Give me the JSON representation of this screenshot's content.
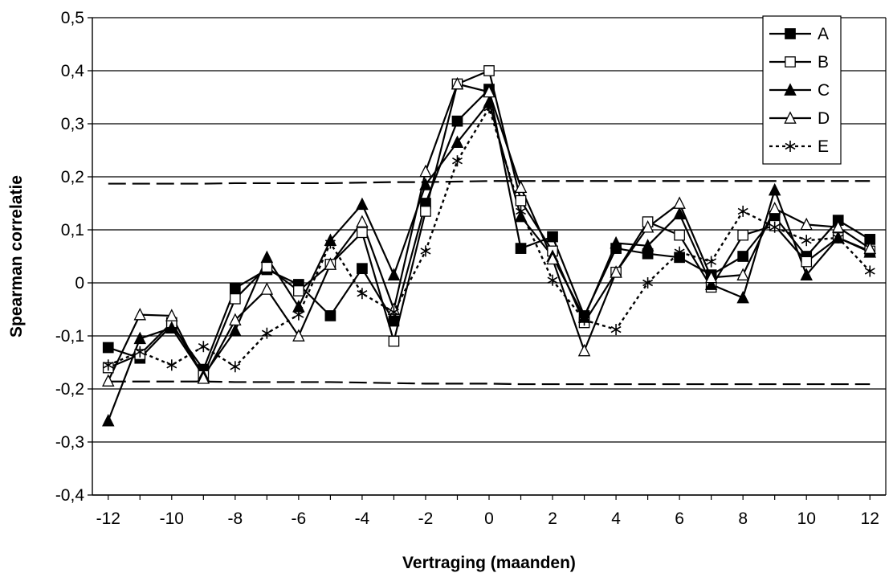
{
  "chart_data": {
    "type": "line",
    "title": "",
    "xlabel": "Vertraging (maanden)",
    "ylabel": "Spearman correlatie",
    "xlim": [
      -12.5,
      12.5
    ],
    "ylim": [
      -0.4,
      0.5
    ],
    "x_ticks": [
      -12,
      -10,
      -8,
      -6,
      -4,
      -2,
      0,
      2,
      4,
      6,
      8,
      10,
      12
    ],
    "x_tick_labels": [
      "-12",
      "-10",
      "-8",
      "-6",
      "-4",
      "-2",
      "0",
      "2",
      "4",
      "6",
      "8",
      "10",
      "12"
    ],
    "y_ticks": [
      -0.4,
      -0.3,
      -0.2,
      -0.1,
      0,
      0.1,
      0.2,
      0.3,
      0.4,
      0.5
    ],
    "y_tick_labels": [
      "-0,4",
      "-0,3",
      "-0,2",
      "-0,1",
      "0",
      "0,1",
      "0,2",
      "0,3",
      "0,4",
      "0,5"
    ],
    "grid": "horizontal",
    "legend_position": "top-right",
    "x": [
      -12,
      -11,
      -10,
      -9,
      -8,
      -7,
      -6,
      -5,
      -4,
      -3,
      -2,
      -1,
      0,
      1,
      2,
      3,
      4,
      5,
      6,
      7,
      8,
      9,
      10,
      11,
      12
    ],
    "series": [
      {
        "name": "A",
        "marker": "filled-square",
        "dash": "solid",
        "values": [
          -0.122,
          -0.142,
          -0.08,
          -0.163,
          -0.01,
          0.025,
          -0.003,
          -0.062,
          0.027,
          -0.072,
          0.15,
          0.305,
          0.365,
          0.065,
          0.087,
          -0.062,
          0.065,
          0.055,
          0.048,
          0.015,
          0.05,
          0.125,
          0.05,
          0.118,
          0.082
        ]
      },
      {
        "name": "B",
        "marker": "open-square",
        "dash": "solid",
        "values": [
          -0.16,
          -0.135,
          -0.075,
          -0.175,
          -0.03,
          0.03,
          -0.015,
          0.035,
          0.095,
          -0.11,
          0.135,
          0.375,
          0.4,
          0.155,
          0.06,
          -0.075,
          0.02,
          0.115,
          0.09,
          -0.008,
          0.09,
          0.108,
          0.04,
          0.085,
          0.06
        ]
      },
      {
        "name": "C",
        "marker": "filled-triangle",
        "dash": "solid",
        "values": [
          -0.26,
          -0.105,
          -0.085,
          -0.175,
          -0.09,
          0.048,
          -0.045,
          0.08,
          0.148,
          0.015,
          0.185,
          0.265,
          0.34,
          0.125,
          0.05,
          -0.065,
          0.075,
          0.07,
          0.13,
          -0.003,
          -0.028,
          0.175,
          0.015,
          0.085,
          0.058
        ]
      },
      {
        "name": "D",
        "marker": "open-triangle",
        "dash": "solid",
        "values": [
          -0.185,
          -0.06,
          -0.062,
          -0.18,
          -0.07,
          -0.012,
          -0.1,
          0.035,
          0.115,
          -0.05,
          0.21,
          0.375,
          0.36,
          0.18,
          0.045,
          -0.128,
          0.02,
          0.105,
          0.15,
          0.01,
          0.015,
          0.14,
          0.11,
          0.105,
          0.065
        ]
      },
      {
        "name": "E",
        "marker": "asterisk",
        "dash": "dotted",
        "values": [
          -0.155,
          -0.13,
          -0.155,
          -0.12,
          -0.158,
          -0.095,
          -0.06,
          0.075,
          -0.02,
          -0.055,
          0.06,
          0.23,
          0.33,
          0.135,
          0.005,
          -0.07,
          -0.088,
          0.0,
          0.058,
          0.04,
          0.135,
          0.105,
          0.08,
          0.085,
          0.022
        ]
      }
    ],
    "reference_lines": [
      {
        "style": "long-dash",
        "values": [
          0.187,
          0.187,
          0.187,
          0.187,
          0.188,
          0.188,
          0.188,
          0.188,
          0.189,
          0.19,
          0.19,
          0.191,
          0.192,
          0.192,
          0.192,
          0.192,
          0.192,
          0.192,
          0.192,
          0.192,
          0.192,
          0.192,
          0.192,
          0.192,
          0.192
        ]
      },
      {
        "style": "long-dash",
        "values": [
          -0.186,
          -0.186,
          -0.186,
          -0.186,
          -0.187,
          -0.187,
          -0.187,
          -0.187,
          -0.188,
          -0.189,
          -0.19,
          -0.19,
          -0.19,
          -0.191,
          -0.191,
          -0.191,
          -0.191,
          -0.191,
          -0.191,
          -0.191,
          -0.191,
          -0.191,
          -0.191,
          -0.191,
          -0.191
        ]
      }
    ],
    "colors": {
      "series": "#000000",
      "grid": "#000000",
      "background": "#ffffff"
    }
  }
}
